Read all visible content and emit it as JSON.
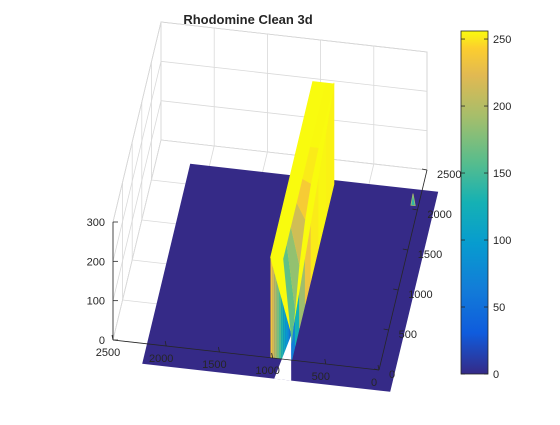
{
  "chart_data": {
    "type": "surface3d",
    "title": "Rhodomine Clean 3d",
    "xlabel": "",
    "ylabel": "",
    "zlabel": "",
    "x_axis": {
      "range": [
        0,
        2500
      ],
      "ticks": [
        0,
        500,
        1000,
        1500,
        2000,
        2500
      ],
      "tick_labels": [
        "0",
        "500",
        "1000",
        "1500",
        "2000",
        "2500"
      ]
    },
    "y_axis": {
      "range": [
        0,
        2500
      ],
      "ticks": [
        0,
        500,
        1000,
        1500,
        2000,
        2500
      ],
      "tick_labels": [
        "0",
        "500",
        "1000",
        "1500",
        "2000",
        "2500"
      ]
    },
    "z_axis": {
      "range": [
        0,
        300
      ],
      "ticks": [
        0,
        100,
        200,
        300
      ],
      "tick_labels": [
        "0",
        "100",
        "200",
        "300"
      ]
    },
    "grid": true,
    "colormap": "parula",
    "colors": {
      "low": "#352a87",
      "mid": "#21b0c8",
      "high": "#f9fb0e"
    },
    "surface": {
      "baseline_z": 0,
      "plateau": {
        "x_range": [
          820,
          1020
        ],
        "y_range": [
          0,
          2200
        ],
        "z": 255
      },
      "rise_profile_y": [
        0,
        180,
        400,
        700,
        1000,
        1400,
        1800,
        2200
      ],
      "rise_profile_z": [
        40,
        90,
        160,
        215,
        245,
        255,
        255,
        255
      ],
      "edge_ripple": [
        0,
        6,
        -4,
        8,
        -2,
        5,
        -6,
        3
      ],
      "small_spike": {
        "x": 50,
        "y": 2050,
        "z": 30
      }
    },
    "colorbar": {
      "range": [
        0,
        256
      ],
      "ticks": [
        0,
        50,
        100,
        150,
        200,
        250
      ],
      "tick_labels": [
        "0",
        "50",
        "100",
        "150",
        "200",
        "250"
      ],
      "location": "right"
    }
  }
}
